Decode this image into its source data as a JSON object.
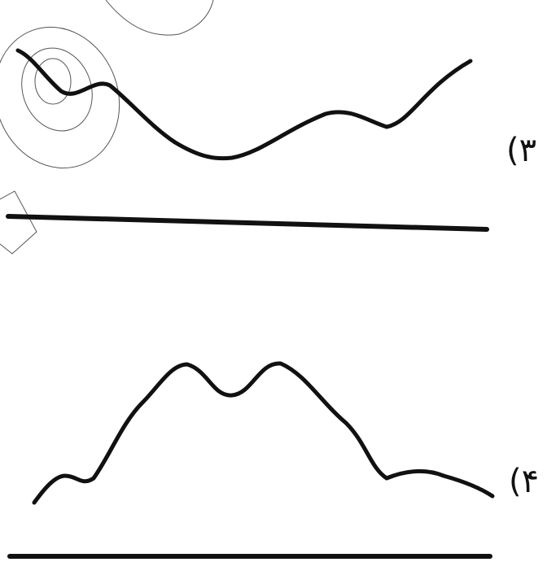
{
  "figures": [
    {
      "label": "(۳"
    },
    {
      "label": "(۴"
    }
  ]
}
